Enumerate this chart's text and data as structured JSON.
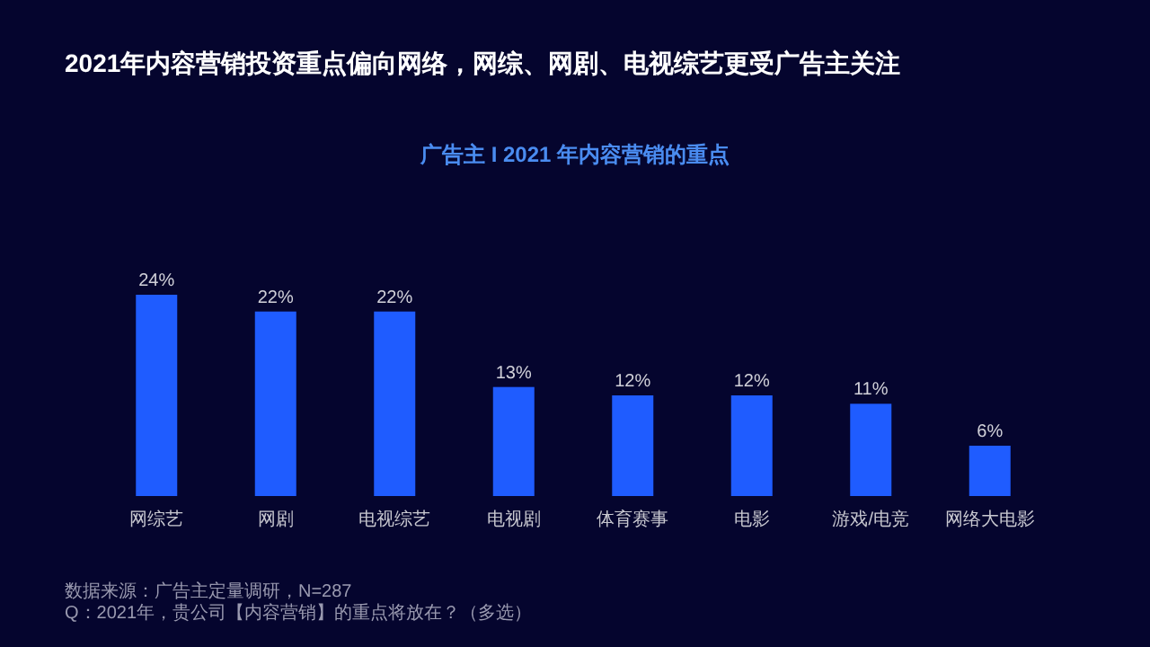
{
  "chart_data": {
    "type": "bar",
    "title": "2021年内容营销投资重点偏向网络，网综、网剧、电视综艺更受广告主关注",
    "subtitle": "广告主 I 2021 年内容营销的重点",
    "categories": [
      "网综艺",
      "网剧",
      "电视综艺",
      "电视剧",
      "体育赛事",
      "电影",
      "游戏/电竞",
      "网络大电影"
    ],
    "values": [
      24,
      22,
      22,
      13,
      12,
      12,
      11,
      6
    ],
    "value_labels": [
      "24%",
      "22%",
      "22%",
      "13%",
      "12%",
      "12%",
      "11%",
      "6%"
    ],
    "color": "#1f5cff",
    "annotations": [
      "数据来源：广告主定量调研，N=287",
      "Q：2021年，贵公司【内容营销】的重点将放在？（多选）"
    ]
  }
}
